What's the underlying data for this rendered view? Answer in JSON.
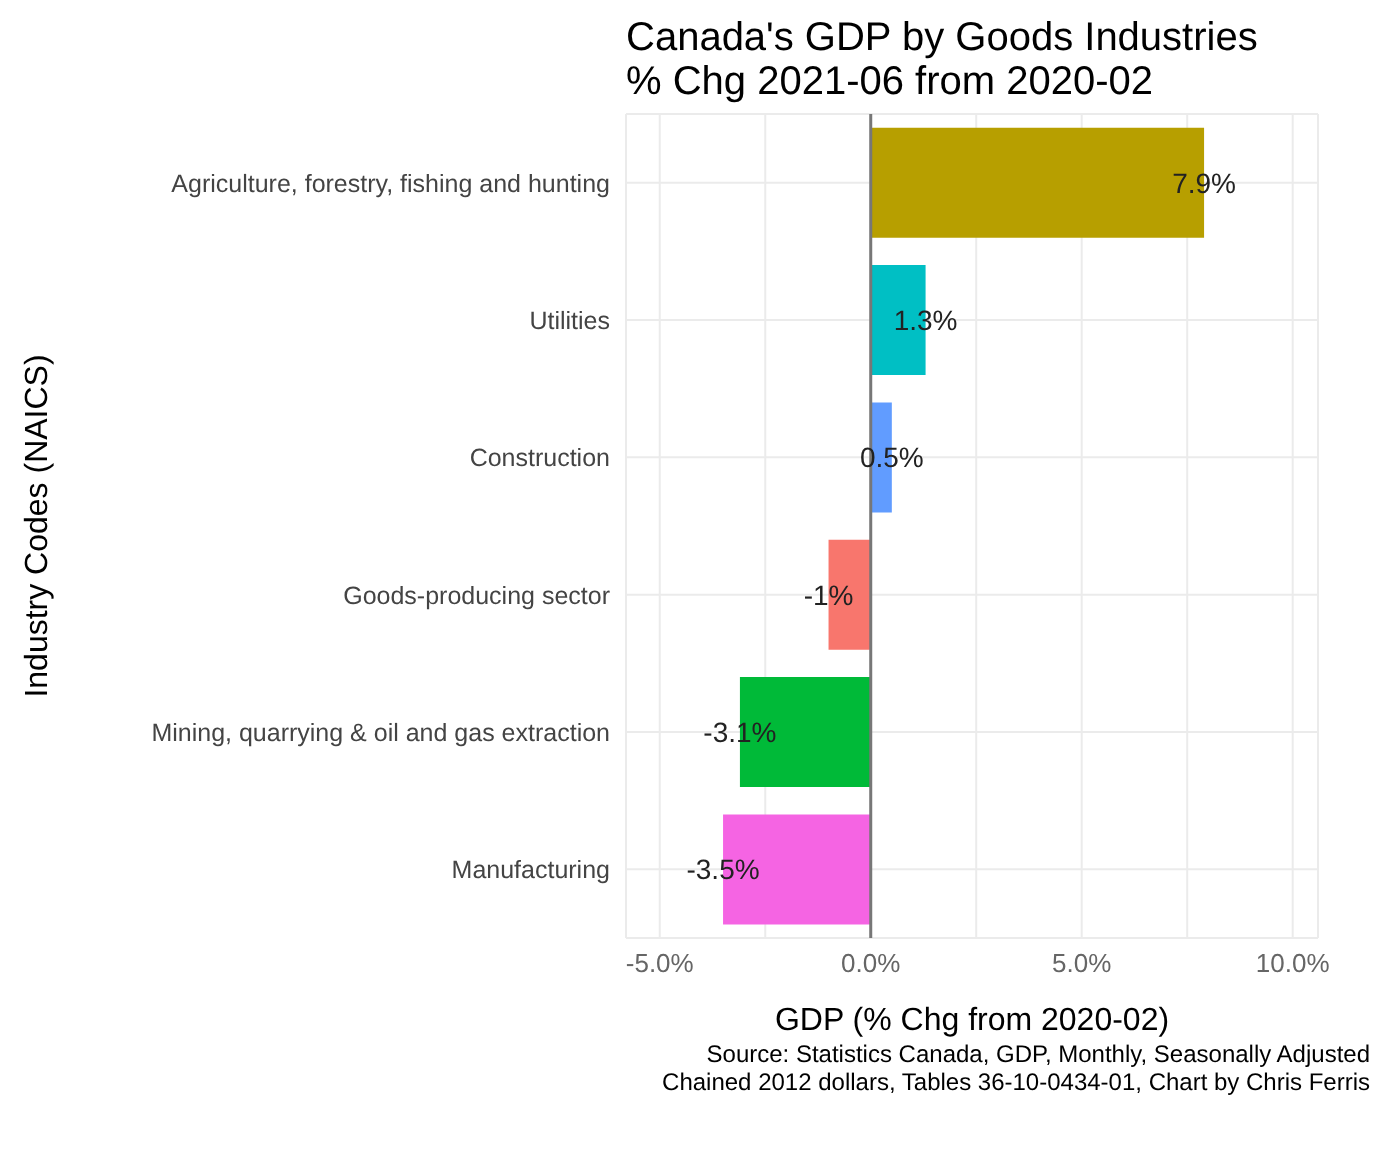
{
  "chart_data": {
    "type": "bar",
    "orientation": "horizontal",
    "title": "Canada's GDP by Goods Industries\n% Chg 2021-06 from 2020-02",
    "xlabel": "GDP (% Chg from 2020-02)",
    "ylabel": "Industry Codes (NAICS)",
    "categories": [
      "Agriculture, forestry, fishing and hunting",
      "Utilities",
      "Construction",
      "Goods-producing sector",
      "Mining, quarrying & oil and gas extraction",
      "Manufacturing"
    ],
    "values": [
      7.9,
      1.3,
      0.5,
      -1,
      -3.1,
      -3.5
    ],
    "value_labels": [
      "7.9%",
      "1.3%",
      "0.5%",
      "-1%",
      "-3.1%",
      "-3.5%"
    ],
    "colors": [
      "#b79f00",
      "#00bfc4",
      "#619cff",
      "#f8766d",
      "#00ba38",
      "#f564e3"
    ],
    "xlim": [
      -5.8,
      10.6
    ],
    "xticks": [
      {
        "value": -5,
        "label": "-5.0%"
      },
      {
        "value": -2.5,
        "label": null
      },
      {
        "value": 0,
        "label": "0.0%"
      },
      {
        "value": 2.5,
        "label": null
      },
      {
        "value": 5,
        "label": "5.0%"
      },
      {
        "value": 7.5,
        "label": null
      },
      {
        "value": 10,
        "label": "10.0%"
      }
    ],
    "grid": true,
    "ref_lines": [
      {
        "axis": "x",
        "value": 0,
        "color": "#777777"
      }
    ],
    "annotations": [
      "Source: Statistics Canada, GDP, Monthly, Seasonally Adjusted",
      "Chained 2012 dollars, Tables 36-10-0434-01, Chart by Chris Ferris"
    ]
  }
}
